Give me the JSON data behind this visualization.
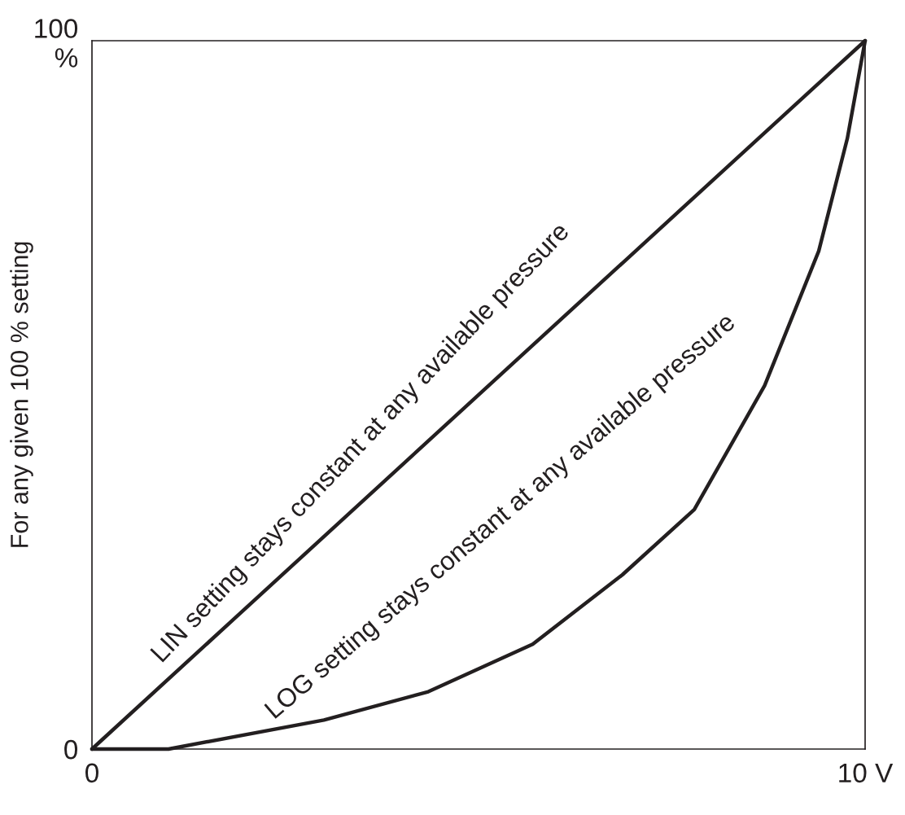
{
  "chart_data": {
    "type": "line",
    "ylabel": "For any given 100 % setting",
    "xlim": [
      0,
      10
    ],
    "ylim": [
      0,
      100
    ],
    "xticks": [
      0,
      {
        "value": 10,
        "label": "10 V"
      }
    ],
    "yticks": [
      0,
      {
        "value": 100,
        "label": "100\n%"
      }
    ],
    "grid": false,
    "legend": false,
    "marker": "none",
    "line_style": "solid",
    "series": [
      {
        "name": "LIN setting stays constant at any available pressure",
        "color": "#231f20",
        "x": [
          0,
          10
        ],
        "values": [
          0,
          100
        ]
      },
      {
        "name": "LOG setting stays constant at any available pressure",
        "color": "#231f20",
        "x": [
          0,
          0.99,
          3.0,
          4.35,
          5.7,
          6.86,
          7.79,
          8.7,
          9.4,
          9.77,
          10
        ],
        "values": [
          0,
          0,
          4.1,
          8.1,
          14.8,
          24.6,
          33.8,
          51.3,
          70.3,
          86.2,
          100
        ]
      }
    ]
  }
}
